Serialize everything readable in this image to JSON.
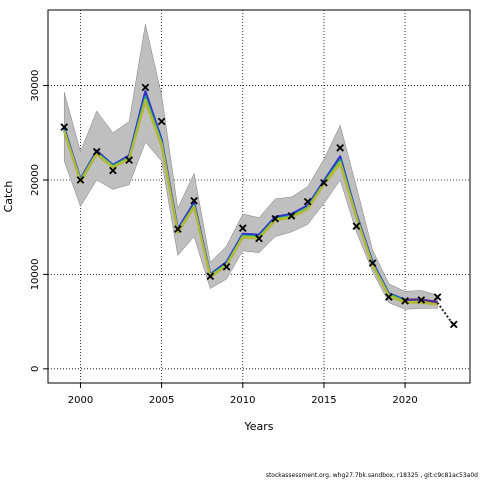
{
  "chart_data": {
    "type": "line",
    "title": "",
    "xlabel": "Years",
    "ylabel": "Catch",
    "xlim": [
      1998,
      2024
    ],
    "ylim": [
      -1500,
      38000
    ],
    "x_ticks": [
      2000,
      2005,
      2010,
      2015,
      2020
    ],
    "y_ticks": [
      0,
      10000,
      20000,
      30000
    ],
    "grid": true,
    "observed": {
      "marker": "x",
      "x": [
        1999,
        2000,
        2001,
        2002,
        2003,
        2004,
        2005,
        2006,
        2007,
        2008,
        2009,
        2010,
        2011,
        2012,
        2013,
        2014,
        2015,
        2016,
        2017,
        2018,
        2019,
        2020,
        2021,
        2022,
        2023
      ],
      "y": [
        25600,
        20000,
        23000,
        21000,
        22100,
        29800,
        26200,
        14800,
        17800,
        9800,
        10800,
        14900,
        13800,
        15900,
        16200,
        17700,
        19700,
        23400,
        15100,
        11200,
        7600,
        7200,
        7300,
        7600,
        4700
      ]
    },
    "band": {
      "x": [
        1999,
        2000,
        2001,
        2002,
        2003,
        2004,
        2005,
        2006,
        2007,
        2008,
        2009,
        2010,
        2011,
        2012,
        2013,
        2014,
        2015,
        2016,
        2017,
        2018,
        2019,
        2020,
        2021,
        2022
      ],
      "upper": [
        29300,
        23000,
        27300,
        25000,
        26200,
        36500,
        29000,
        17000,
        20700,
        11300,
        13000,
        16400,
        16000,
        18000,
        18200,
        19300,
        22200,
        25800,
        19300,
        12600,
        9000,
        8200,
        8300,
        7800
      ],
      "lower": [
        22000,
        17200,
        20000,
        19000,
        19500,
        24000,
        22000,
        12000,
        14000,
        8500,
        9500,
        12500,
        12300,
        14000,
        14500,
        15300,
        17500,
        20000,
        14500,
        10300,
        7000,
        6300,
        6400,
        6400
      ]
    },
    "series": [
      {
        "color": "#3333cc",
        "x": [
          1999,
          2000,
          2001,
          2002,
          2003,
          2004,
          2005,
          2006,
          2007,
          2008,
          2009,
          2010,
          2011,
          2012,
          2013,
          2014,
          2015,
          2016,
          2017,
          2018,
          2019,
          2020,
          2021,
          2022
        ],
        "y": [
          25500,
          20100,
          23100,
          21600,
          22600,
          29400,
          24300,
          14800,
          17600,
          10000,
          11300,
          14300,
          14200,
          16100,
          16400,
          17300,
          19900,
          22500,
          16400,
          11300,
          8000,
          7300,
          7300,
          7100
        ]
      },
      {
        "color": "#1f9e89",
        "x": [
          1999,
          2000,
          2001,
          2002,
          2003,
          2004,
          2005,
          2006,
          2007,
          2008,
          2009,
          2010,
          2011,
          2012,
          2013,
          2014,
          2015,
          2016,
          2017,
          2018,
          2019,
          2020,
          2021,
          2022
        ],
        "y": [
          25300,
          20000,
          22900,
          21500,
          22400,
          28800,
          24000,
          14600,
          17300,
          9900,
          11100,
          14100,
          14000,
          15900,
          16200,
          17100,
          19700,
          22100,
          16200,
          11100,
          7900,
          7200,
          7200,
          7000
        ]
      },
      {
        "color": "#9acd32",
        "x": [
          1999,
          2000,
          2001,
          2002,
          2003,
          2004,
          2005,
          2006,
          2007,
          2008,
          2009,
          2010,
          2011,
          2012,
          2013,
          2014,
          2015,
          2016,
          2017,
          2018,
          2019,
          2020,
          2021,
          2022
        ],
        "y": [
          25200,
          19900,
          22800,
          21400,
          22300,
          28500,
          23800,
          14500,
          17200,
          9800,
          11000,
          14000,
          13900,
          15800,
          16100,
          17000,
          19600,
          21900,
          16100,
          11000,
          7800,
          7100,
          7100,
          6900
        ]
      },
      {
        "color": "#b5b53a",
        "x": [
          1999,
          2000,
          2001,
          2002,
          2003,
          2004,
          2005,
          2006,
          2007,
          2008,
          2009,
          2010,
          2011,
          2012,
          2013,
          2014,
          2015,
          2016,
          2017,
          2018,
          2019,
          2020,
          2021,
          2022
        ],
        "y": [
          25100,
          19800,
          22700,
          21300,
          22200,
          28300,
          23600,
          14400,
          17100,
          9700,
          10900,
          13900,
          13800,
          15700,
          16000,
          16900,
          19500,
          21700,
          16000,
          10900,
          7700,
          7000,
          7000,
          6800
        ]
      },
      {
        "color": "#5b2a86",
        "x": [
          2020,
          2021,
          2022
        ],
        "y": [
          7300,
          7350,
          7050
        ]
      },
      {
        "color": "#222222",
        "dashed": true,
        "x": [
          2022,
          2023
        ],
        "y": [
          7000,
          4600
        ]
      }
    ],
    "footer": "stockassessment.org, whg27.7bk.sandbox, r18325 , git:c9c81ac53a0d"
  }
}
